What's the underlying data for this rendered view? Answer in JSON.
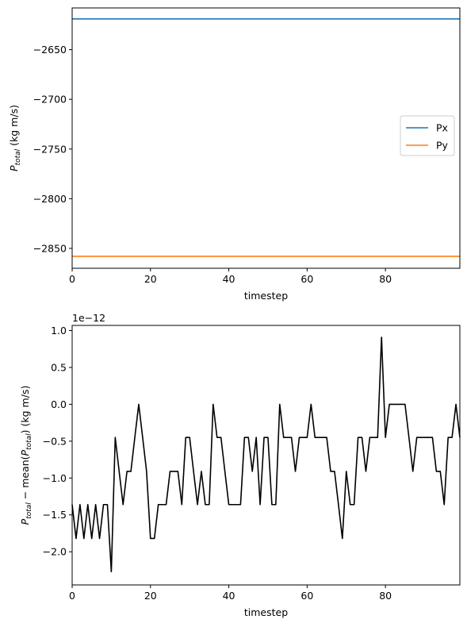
{
  "chart_data": [
    {
      "type": "line",
      "title": "",
      "xlabel": "timestep",
      "ylabel_main": "P",
      "ylabel_sub": "total",
      "ylabel_unit": " (kg m/s)",
      "xlim": [
        0,
        99
      ],
      "ylim": [
        -2870,
        -2608
      ],
      "xticks": [
        0,
        20,
        40,
        60,
        80
      ],
      "xtick_labels": [
        "0",
        "20",
        "40",
        "60",
        "80"
      ],
      "yticks": [
        -2650,
        -2700,
        -2750,
        -2800,
        -2850
      ],
      "ytick_labels": [
        "−2650",
        "−2700",
        "−2750",
        "−2800",
        "−2850"
      ],
      "legend_placement": "center-right",
      "grid": false,
      "x": [
        0,
        99
      ],
      "series": [
        {
          "name": "Px",
          "color": "#1f77b4",
          "values": [
            -2619,
            -2619
          ]
        },
        {
          "name": "Py",
          "color": "#ff7f0e",
          "values": [
            -2858,
            -2858
          ]
        }
      ]
    },
    {
      "type": "line",
      "title": "",
      "xlabel": "timestep",
      "ylabel_parts": [
        "P",
        "total",
        " − mean(",
        "P",
        "total",
        ") (kg m/s)"
      ],
      "offset_text": "1e−12",
      "xlim": [
        0,
        99
      ],
      "ylim": [
        -2.45,
        1.07
      ],
      "xticks": [
        0,
        20,
        40,
        60,
        80
      ],
      "xtick_labels": [
        "0",
        "20",
        "40",
        "60",
        "80"
      ],
      "yticks": [
        1.0,
        0.5,
        0.0,
        -0.5,
        -1.0,
        -1.5,
        -2.0
      ],
      "ytick_labels": [
        "1.0",
        "0.5",
        "0.0",
        "−0.5",
        "−1.0",
        "−1.5",
        "−2.0"
      ],
      "grid": false,
      "series": [
        {
          "name": "",
          "color": "#000000",
          "values": [
            -1.36,
            -1.82,
            -1.36,
            -1.82,
            -1.36,
            -1.82,
            -1.36,
            -1.82,
            -1.36,
            -1.36,
            -2.27,
            -0.45,
            -0.91,
            -1.36,
            -0.91,
            -0.91,
            -0.45,
            0.0,
            -0.45,
            -0.91,
            -1.82,
            -1.82,
            -1.36,
            -1.36,
            -1.36,
            -0.91,
            -0.91,
            -0.91,
            -1.36,
            -0.45,
            -0.45,
            -0.91,
            -1.36,
            -0.91,
            -1.36,
            -1.36,
            0.0,
            -0.45,
            -0.45,
            -0.91,
            -1.36,
            -1.36,
            -1.36,
            -1.36,
            -0.45,
            -0.45,
            -0.91,
            -0.45,
            -1.36,
            -0.45,
            -0.45,
            -1.36,
            -1.36,
            0.0,
            -0.45,
            -0.45,
            -0.45,
            -0.91,
            -0.45,
            -0.45,
            -0.45,
            0.0,
            -0.45,
            -0.45,
            -0.45,
            -0.45,
            -0.91,
            -0.91,
            -1.36,
            -1.82,
            -0.91,
            -1.36,
            -1.36,
            -0.45,
            -0.45,
            -0.91,
            -0.45,
            -0.45,
            -0.45,
            0.91,
            -0.45,
            0.0,
            0.0,
            0.0,
            0.0,
            0.0,
            -0.45,
            -0.91,
            -0.45,
            -0.45,
            -0.45,
            -0.45,
            -0.45,
            -0.91,
            -0.91,
            -1.36,
            -0.45,
            -0.45,
            0.0,
            -0.45
          ]
        }
      ]
    }
  ]
}
